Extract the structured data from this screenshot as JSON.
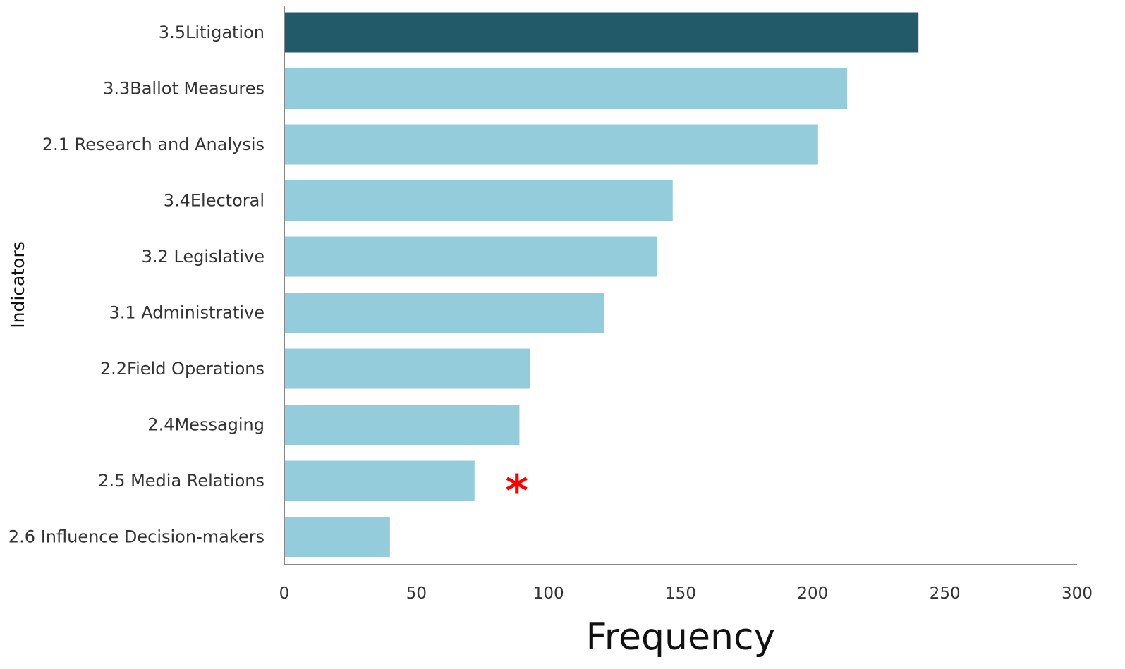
{
  "chart_data": {
    "type": "bar",
    "orientation": "horizontal",
    "categories": [
      "3.5Litigation",
      "3.3Ballot Measures",
      "2.1 Research and Analysis",
      "3.4Electoral",
      "3.2 Legislative",
      "3.1 Administrative",
      "2.2Field Operations",
      "2.4Messaging",
      "2.5 Media Relations",
      "2.6 Influence Decision-makers"
    ],
    "values": [
      240,
      213,
      202,
      147,
      141,
      121,
      93,
      89,
      72,
      40
    ],
    "xlabel": "Frequency",
    "ylabel": "Indicators",
    "xlim": [
      0,
      300
    ],
    "xticks": [
      0,
      50,
      100,
      150,
      200,
      250,
      300
    ],
    "grid": false,
    "legend": "none",
    "highlight_category": "3.5Litigation",
    "annotation": {
      "text": "*",
      "category": "2.5 Media Relations",
      "x": 88,
      "color": "#ff0000"
    },
    "colors": {
      "bar": "#95ccdc",
      "highlight": "#225a69",
      "axis": "#888888"
    }
  }
}
